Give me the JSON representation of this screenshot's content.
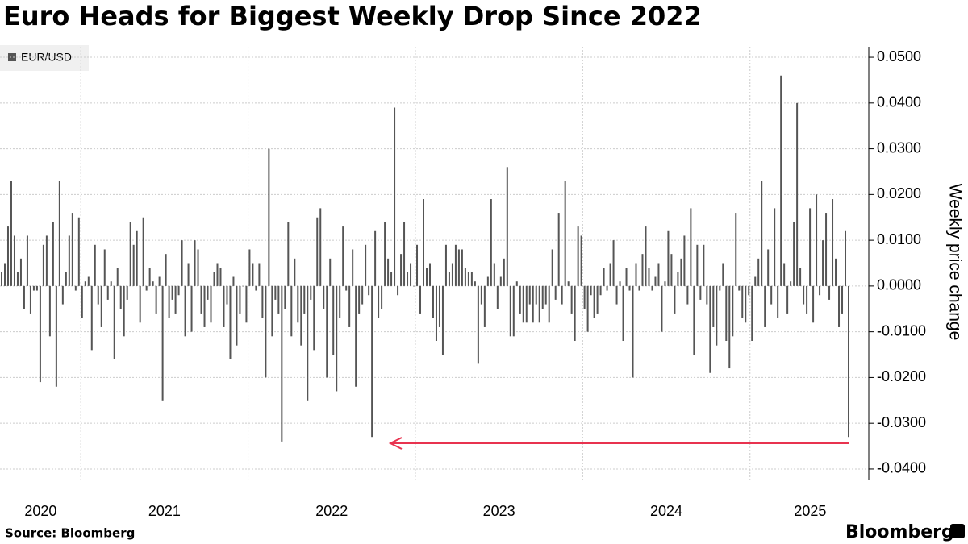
{
  "chart_data": {
    "type": "bar",
    "title": "Euro Heads for Biggest Weekly Drop Since 2022",
    "y_label": "Weekly price change",
    "source": "Source: Bloomberg",
    "brand": "Bloomberg",
    "series": [
      {
        "name": "EUR/USD",
        "color": "#555555",
        "values": [
          0.003,
          0.005,
          0.013,
          0.023,
          0.011,
          0.003,
          0.006,
          -0.005,
          0.011,
          -0.006,
          -0.001,
          -0.001,
          -0.021,
          0.009,
          0.011,
          -0.011,
          0.014,
          -0.022,
          0.023,
          -0.004,
          0.003,
          0.011,
          0.016,
          -0.001,
          0.015,
          -0.007,
          0.001,
          0.002,
          -0.014,
          0.009,
          -0.004,
          -0.009,
          0.008,
          -0.003,
          0.001,
          -0.016,
          0.004,
          -0.005,
          -0.011,
          -0.003,
          0.014,
          0.009,
          0.012,
          -0.008,
          0.015,
          -0.001,
          0.004,
          0.001,
          -0.006,
          0.002,
          -0.025,
          0.007,
          -0.007,
          -0.003,
          -0.006,
          -0.002,
          0.01,
          -0.011,
          0.005,
          -0.01,
          0.01,
          0.008,
          -0.006,
          -0.009,
          -0.003,
          -0.008,
          0.003,
          0.005,
          0.004,
          -0.009,
          -0.004,
          -0.016,
          0.002,
          -0.013,
          -0.006,
          0.0,
          -0.008,
          0.008,
          0.005,
          -0.001,
          0.005,
          -0.007,
          -0.02,
          0.03,
          -0.011,
          -0.003,
          -0.006,
          -0.034,
          -0.005,
          0.014,
          -0.011,
          0.006,
          -0.008,
          -0.013,
          -0.006,
          -0.025,
          -0.003,
          -0.014,
          0.015,
          0.017,
          -0.005,
          -0.02,
          0.006,
          -0.015,
          -0.023,
          -0.007,
          0.013,
          -0.001,
          -0.009,
          0.008,
          -0.022,
          -0.006,
          -0.004,
          0.009,
          -0.002,
          -0.033,
          0.012,
          -0.007,
          -0.005,
          0.014,
          0.006,
          0.003,
          0.039,
          -0.002,
          0.007,
          0.014,
          0.003,
          0.005,
          0.0,
          0.009,
          -0.006,
          0.019,
          0.004,
          0.005,
          -0.007,
          -0.012,
          -0.009,
          -0.015,
          0.009,
          0.003,
          0.005,
          0.009,
          0.008,
          0.008,
          0.004,
          0.003,
          0.003,
          0.001,
          -0.017,
          -0.004,
          -0.009,
          0.002,
          0.019,
          0.005,
          -0.005,
          0.002,
          0.006,
          0.026,
          -0.011,
          -0.011,
          0.001,
          -0.006,
          -0.008,
          -0.008,
          -0.004,
          -0.008,
          -0.004,
          -0.008,
          -0.005,
          -0.004,
          -0.008,
          0.008,
          -0.003,
          0.016,
          -0.004,
          0.023,
          0.001,
          -0.006,
          -0.012,
          0.013,
          0.011,
          -0.005,
          -0.01,
          -0.002,
          -0.007,
          -0.006,
          -0.002,
          0.004,
          -0.001,
          0.005,
          0.01,
          -0.004,
          0.001,
          -0.012,
          0.004,
          -0.001,
          -0.02,
          0.005,
          -0.001,
          0.007,
          0.013,
          0.004,
          -0.001,
          0.002,
          0.005,
          -0.01,
          0.001,
          0.012,
          0.007,
          -0.006,
          0.003,
          0.006,
          0.011,
          -0.004,
          0.017,
          -0.015,
          0.009,
          -0.003,
          0.009,
          -0.004,
          -0.019,
          -0.009,
          -0.013,
          -0.001,
          0.005,
          -0.012,
          -0.018,
          -0.011,
          0.016,
          -0.001,
          -0.007,
          -0.008,
          -0.002,
          -0.012,
          0.002,
          0.006,
          0.023,
          -0.009,
          0.008,
          -0.004,
          0.017,
          -0.007,
          0.046,
          0.005,
          -0.006,
          0.001,
          0.014,
          0.04,
          0.004,
          -0.004,
          -0.006,
          0.017,
          -0.008,
          0.02,
          -0.002,
          0.01,
          0.016,
          -0.003,
          0.019,
          0.006,
          -0.009,
          -0.006,
          0.012,
          -0.033
        ]
      }
    ],
    "ylim": [
      -0.0423,
      0.0523
    ],
    "yticks": [
      {
        "value": 0.05,
        "label": "0.0500"
      },
      {
        "value": 0.04,
        "label": "0.0400"
      },
      {
        "value": 0.03,
        "label": "0.0300"
      },
      {
        "value": 0.02,
        "label": "0.0200"
      },
      {
        "value": 0.01,
        "label": "0.0100"
      },
      {
        "value": 0,
        "label": "0.0000"
      },
      {
        "value": -0.01,
        "label": "-0.0100"
      },
      {
        "value": -0.02,
        "label": "-0.0200"
      },
      {
        "value": -0.03,
        "label": "-0.0300"
      },
      {
        "value": -0.04,
        "label": "-0.0400"
      }
    ],
    "xlim": [
      2020.517,
      2025.71
    ],
    "xticks": [
      {
        "value": 2020.76,
        "label": "2020"
      },
      {
        "value": 2021.5,
        "label": "2021"
      },
      {
        "value": 2022.5,
        "label": "2022"
      },
      {
        "value": 2023.5,
        "label": "2023"
      },
      {
        "value": 2024.5,
        "label": "2024"
      },
      {
        "value": 2025.36,
        "label": "2025"
      }
    ],
    "xgrid": [
      2021,
      2022,
      2023,
      2024,
      2025
    ],
    "grid": true
  }
}
